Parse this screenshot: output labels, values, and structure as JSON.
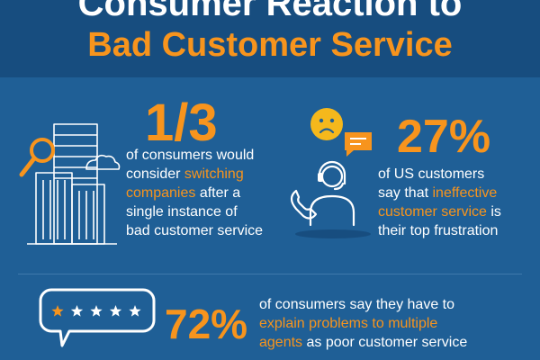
{
  "header": {
    "line1": "Consumer Reaction to",
    "line2": "Bad Customer Service"
  },
  "stat1": {
    "value": "1/3",
    "text": {
      "l1": "of consumers would",
      "l2a": "consider ",
      "l2b": "switching",
      "l3a": "companies",
      "l3b": " after a",
      "l4": "single instance of",
      "l5": "bad customer service"
    },
    "icon": "building-magnifier-icon"
  },
  "stat2": {
    "value": "27%",
    "text": {
      "l1": "of US customers",
      "l2a": "say that ",
      "l2b": "ineffective",
      "l3a": "customer service",
      "l3b": " is",
      "l4": "their top frustration"
    },
    "icons": [
      "sad-face-icon",
      "chat-bubble-icon",
      "call-agent-icon"
    ]
  },
  "stat3": {
    "value": "72%",
    "text": {
      "l1": "of consumers say they have to",
      "l2": "explain problems to multiple",
      "l3a": "agents",
      "l3b": " as poor customer service"
    },
    "rating": {
      "filled": 1,
      "total": 5
    },
    "icon": "star-rating-bubble-icon"
  },
  "colors": {
    "background": "#1f5f96",
    "header_bg": "#174d7f",
    "accent": "#f7941d",
    "text": "#ffffff",
    "sad_face": "#f5b81c"
  }
}
